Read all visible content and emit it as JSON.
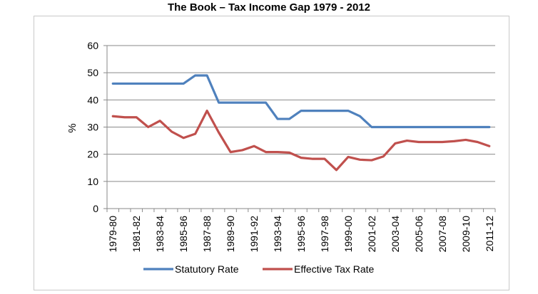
{
  "chart_data": {
    "type": "line",
    "title": "The Book – Tax Income Gap 1979 - 2012",
    "xlabel": "",
    "ylabel": "%",
    "ylim": [
      0,
      60
    ],
    "yticks": [
      0,
      10,
      20,
      30,
      40,
      50,
      60
    ],
    "grid": true,
    "legend_position": "bottom",
    "categories": [
      "1979-80",
      "1980-81",
      "1981-82",
      "1982-83",
      "1983-84",
      "1984-85",
      "1985-86",
      "1986-87",
      "1987-88",
      "1988-89",
      "1989-90",
      "1990-91",
      "1991-92",
      "1992-93",
      "1993-94",
      "1994-95",
      "1995-96",
      "1996-97",
      "1997-98",
      "1998-99",
      "1999-00",
      "2000-01",
      "2001-02",
      "2002-03",
      "2003-04",
      "2004-05",
      "2005-06",
      "2006-07",
      "2007-08",
      "2008-09",
      "2009-10",
      "2010-11",
      "2011-12"
    ],
    "tick_labels": [
      "1979-80",
      "1981-82",
      "1983-84",
      "1985-86",
      "1987-88",
      "1989-90",
      "1991-92",
      "1993-94",
      "1995-96",
      "1997-98",
      "1999-00",
      "2001-02",
      "2003-04",
      "2005-06",
      "2007-08",
      "2009-10",
      "2011-12"
    ],
    "series": [
      {
        "name": "Statutory Rate",
        "color": "#4f81bd",
        "values": [
          46,
          46,
          46,
          46,
          46,
          46,
          46,
          49,
          49,
          39,
          39,
          39,
          39,
          39,
          33,
          33,
          36,
          36,
          36,
          36,
          36,
          34,
          30,
          30,
          30,
          30,
          30,
          30,
          30,
          30,
          30,
          30,
          30
        ]
      },
      {
        "name": "Effective Tax Rate",
        "color": "#c0504d",
        "values": [
          34,
          33.6,
          33.6,
          30,
          32.3,
          28.3,
          26,
          27.5,
          36,
          28,
          20.8,
          21.5,
          23,
          20.8,
          20.8,
          20.6,
          18.7,
          18.3,
          18.3,
          14.2,
          19,
          18,
          17.8,
          19.2,
          24,
          25,
          24.5,
          24.5,
          24.5,
          24.8,
          25.3,
          24.5,
          23
        ]
      }
    ]
  }
}
